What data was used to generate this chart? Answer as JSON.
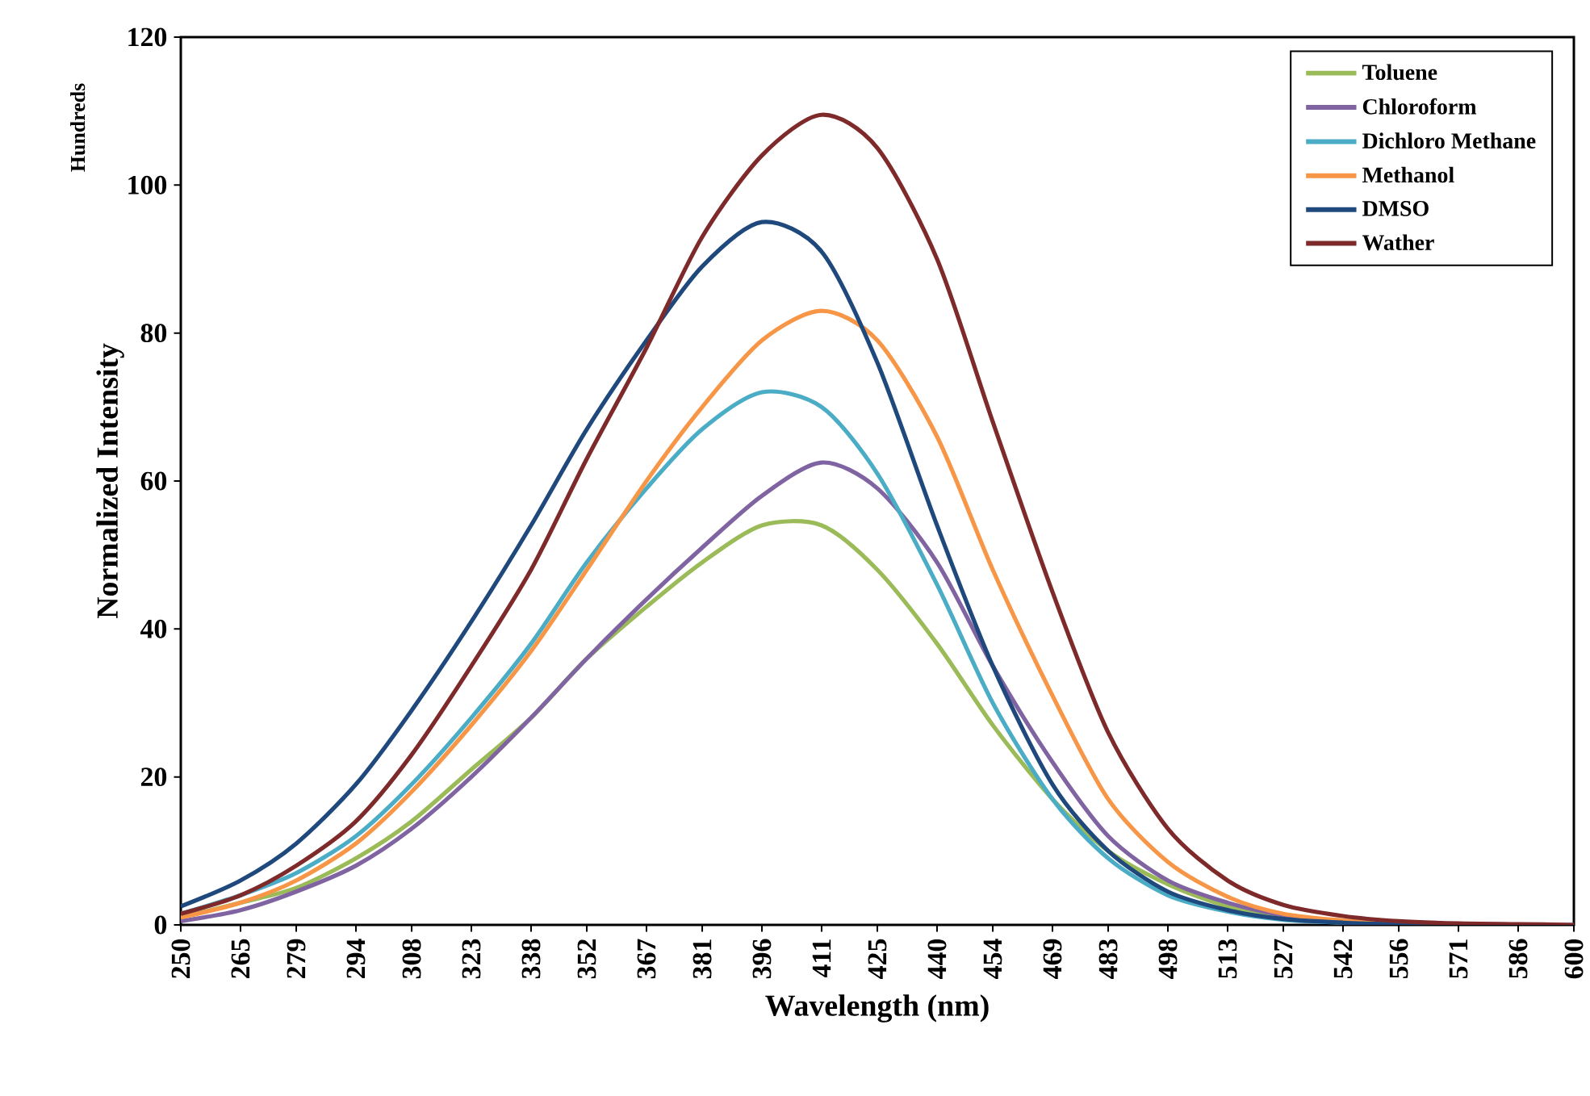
{
  "chart_data": {
    "type": "line",
    "xlabel": "Wavelength (nm)",
    "ylabel": "Normalized Intensity",
    "annotations": [
      "Hundreds"
    ],
    "x": [
      250,
      265,
      279,
      294,
      308,
      323,
      338,
      352,
      367,
      381,
      396,
      411,
      425,
      440,
      454,
      469,
      483,
      498,
      513,
      527,
      542,
      556,
      571,
      586,
      600
    ],
    "xlim": [
      250,
      600
    ],
    "xticks": [
      250,
      265,
      279,
      294,
      308,
      323,
      338,
      352,
      367,
      381,
      396,
      411,
      425,
      440,
      454,
      469,
      483,
      498,
      513,
      527,
      542,
      556,
      571,
      586,
      600
    ],
    "ylim": [
      0,
      120
    ],
    "yticks": [
      0,
      20,
      40,
      60,
      80,
      100,
      120
    ],
    "grid": false,
    "legend": "top right",
    "marker": "none",
    "line_style": "solid",
    "series": [
      {
        "name": "Toluene",
        "color": "#9bbb59",
        "values": [
          1,
          3,
          5,
          9,
          14,
          21,
          28,
          36,
          43,
          49,
          54,
          54,
          48,
          38,
          27,
          17,
          10,
          5.5,
          2.5,
          1.2,
          0.5,
          null,
          null,
          null,
          null
        ]
      },
      {
        "name": "Chloroform",
        "color": "#8064a2",
        "values": [
          0.5,
          2,
          4.5,
          8,
          13,
          20,
          28,
          36,
          44,
          51,
          58,
          62.5,
          59,
          49,
          35,
          22,
          12,
          6,
          3,
          1.3,
          0.5,
          0.2,
          0.1,
          0,
          0
        ]
      },
      {
        "name": "Dichloro Methane",
        "color": "#4bacc6",
        "values": [
          1.5,
          4,
          7,
          12,
          19,
          28,
          38,
          49,
          59,
          67,
          72,
          70,
          61,
          46,
          30,
          17,
          9,
          4,
          1.8,
          0.7,
          0.3,
          0.1,
          null,
          null,
          null
        ]
      },
      {
        "name": "Methanol",
        "color": "#f79646",
        "values": [
          1,
          3,
          6,
          11,
          18,
          27,
          37,
          48,
          60,
          70,
          79,
          83,
          79,
          66,
          48,
          31,
          17,
          8.5,
          3.8,
          1.5,
          0.6,
          0.2,
          0.1,
          null,
          null
        ]
      },
      {
        "name": "DMSO",
        "color": "#1f497d",
        "values": [
          2.5,
          6,
          11,
          19,
          29,
          41,
          54,
          67,
          79,
          89,
          95,
          91,
          76,
          54,
          35,
          19,
          10,
          4.5,
          2,
          0.8,
          0.3,
          0.1,
          0,
          null,
          null
        ]
      },
      {
        "name": "Wather",
        "color": "#7f2a2a",
        "values": [
          1.5,
          4,
          8,
          14,
          23,
          35,
          48,
          63,
          78,
          93,
          104,
          109.5,
          105,
          90,
          68,
          45,
          26,
          13,
          6,
          2.7,
          1.2,
          0.5,
          0.2,
          0.1,
          0
        ]
      }
    ]
  }
}
